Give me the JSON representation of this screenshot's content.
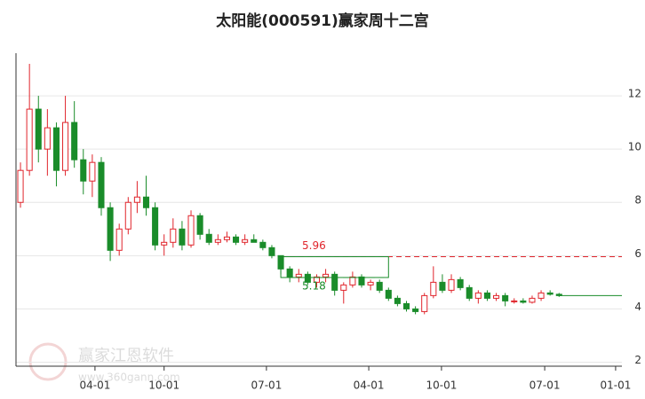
{
  "chart_data": {
    "type": "candlestick",
    "title": "太阳能(000591)赢家周十二宫",
    "open": [
      8.0,
      9.2,
      11.5,
      10.0,
      10.8,
      9.2,
      11.0,
      9.6,
      8.8,
      9.5,
      7.8,
      6.2,
      7.0,
      8.0,
      8.2,
      7.8,
      6.4,
      6.5,
      7.0,
      6.4,
      7.5,
      6.8,
      6.5,
      6.6,
      6.7,
      6.5,
      6.6,
      6.5,
      6.3,
      6.0,
      5.5,
      5.2,
      5.3,
      5.0,
      5.2,
      5.3,
      4.7,
      4.9,
      5.2,
      4.9,
      5.0,
      4.7,
      4.4,
      4.2,
      4.0,
      3.9,
      4.5,
      5.0,
      4.7,
      5.1,
      4.8,
      4.4,
      4.6,
      4.4,
      4.5,
      4.3,
      4.3,
      4.25,
      4.4,
      4.6,
      4.55
    ],
    "high": [
      9.5,
      13.2,
      12.0,
      11.5,
      11.0,
      12.0,
      11.8,
      10.0,
      9.8,
      9.7,
      8.0,
      7.2,
      8.2,
      8.8,
      9.0,
      8.0,
      6.8,
      7.4,
      7.3,
      7.7,
      7.6,
      7.0,
      6.8,
      6.9,
      6.8,
      6.8,
      6.8,
      6.6,
      6.4,
      6.0,
      5.6,
      5.5,
      5.4,
      5.3,
      5.5,
      5.4,
      5.0,
      5.4,
      5.3,
      5.1,
      5.1,
      4.8,
      4.5,
      4.3,
      4.1,
      4.6,
      5.6,
      5.3,
      5.3,
      5.2,
      4.9,
      4.7,
      4.7,
      4.6,
      4.6,
      4.4,
      4.4,
      4.5,
      4.7,
      4.7,
      4.6
    ],
    "low": [
      7.8,
      9.0,
      9.5,
      9.0,
      8.6,
      9.0,
      9.3,
      8.3,
      8.2,
      7.5,
      5.8,
      6.0,
      6.8,
      7.6,
      7.5,
      6.2,
      6.0,
      6.3,
      6.2,
      6.3,
      6.6,
      6.4,
      6.4,
      6.5,
      6.4,
      6.4,
      6.5,
      6.2,
      5.9,
      5.3,
      5.0,
      5.0,
      4.9,
      4.8,
      5.0,
      4.5,
      4.2,
      4.8,
      4.8,
      4.7,
      4.6,
      4.3,
      4.1,
      3.9,
      3.8,
      3.8,
      4.4,
      4.6,
      4.6,
      4.7,
      4.3,
      4.2,
      4.3,
      4.3,
      4.1,
      4.2,
      4.2,
      4.2,
      4.3,
      4.5,
      4.45
    ],
    "close": [
      9.2,
      11.5,
      10.0,
      10.8,
      9.2,
      11.0,
      9.6,
      8.8,
      9.5,
      7.8,
      6.2,
      7.0,
      8.0,
      8.2,
      7.8,
      6.4,
      6.5,
      7.0,
      6.4,
      7.5,
      6.8,
      6.5,
      6.6,
      6.7,
      6.5,
      6.6,
      6.5,
      6.3,
      6.0,
      5.5,
      5.2,
      5.3,
      5.0,
      5.2,
      5.3,
      4.7,
      4.9,
      5.2,
      4.9,
      5.0,
      4.7,
      4.4,
      4.2,
      4.0,
      3.9,
      4.5,
      5.0,
      4.7,
      5.1,
      4.8,
      4.4,
      4.6,
      4.4,
      4.5,
      4.3,
      4.3,
      4.25,
      4.4,
      4.6,
      4.55,
      4.5
    ],
    "up_color": "#e0242b",
    "down_color": "#1a8c2a",
    "xlim": [
      -0.5,
      67
    ],
    "xticks": [
      {
        "value": 8.3,
        "label": "04-01"
      },
      {
        "value": 16,
        "label": "10-01"
      },
      {
        "value": 27.4,
        "label": "07-01"
      },
      {
        "value": 38.8,
        "label": "04-01"
      },
      {
        "value": 46.9,
        "label": "10-01"
      },
      {
        "value": 58.4,
        "label": "07-01"
      },
      {
        "value": 66.3,
        "label": "01-01"
      }
    ],
    "ylim": [
      1.85,
      13.6
    ],
    "yticks": [
      2,
      4,
      6,
      8,
      10,
      12
    ],
    "grid": true,
    "resistance": {
      "value": 5.96,
      "label": "5.96",
      "start": 29,
      "color": "#e0242b"
    },
    "support": {
      "value": 5.18,
      "label": "5.18",
      "start": 29,
      "end": 41,
      "color": "#1a8c2a"
    },
    "watermark": {
      "name": "赢家江恩软件",
      "url": "www.360gann.com"
    }
  }
}
